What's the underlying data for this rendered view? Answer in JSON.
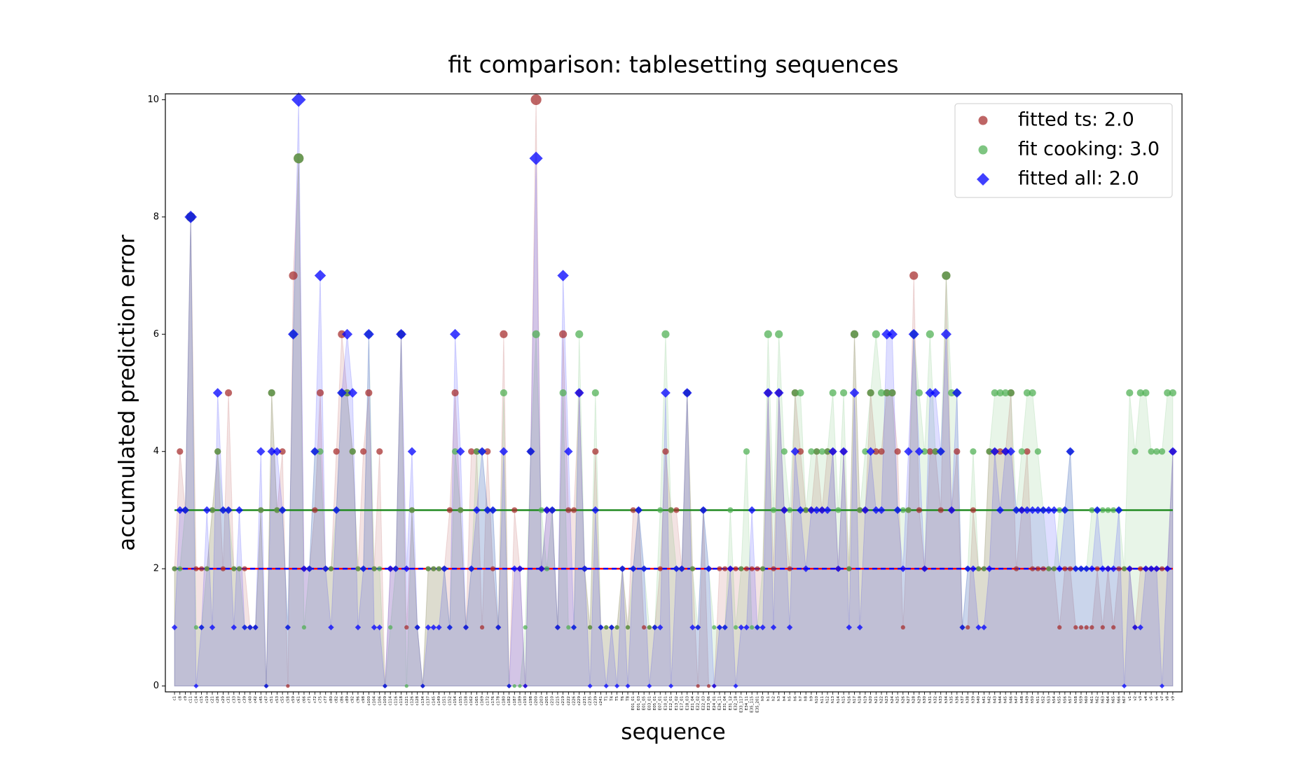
{
  "chart_data": {
    "type": "line",
    "title": "fit comparison: tablesetting sequences",
    "x_label": "sequence",
    "y_label": "accumulated prediction error",
    "ylim": [
      -0.1,
      10.1
    ],
    "yticks": [
      0,
      2,
      4,
      6,
      8,
      10
    ],
    "legend": "upper right",
    "categories": [
      "c1",
      "c8",
      "c9",
      "c11",
      "c14",
      "c15",
      "c19",
      "c21",
      "c26",
      "c29",
      "c31",
      "c33",
      "c37",
      "c39",
      "c40",
      "c42",
      "c45",
      "c47",
      "c51",
      "c53",
      "c55",
      "c58",
      "c59",
      "c61",
      "c66",
      "c71",
      "c72",
      "c75",
      "c77",
      "c80",
      "c82",
      "c86",
      "c89",
      "c92",
      "c96",
      "c98",
      "c100",
      "c104",
      "c106",
      "c109",
      "c114",
      "c116",
      "c118",
      "c121",
      "c126",
      "c128",
      "c134",
      "c137",
      "c145",
      "c149",
      "c151",
      "c152",
      "c154",
      "c155",
      "c158",
      "c162",
      "c165",
      "c169",
      "c172",
      "c176",
      "c178",
      "c180",
      "c182",
      "c187",
      "c189",
      "c193",
      "c198",
      "c200",
      "c203",
      "c205",
      "c210",
      "c215",
      "c219",
      "c222",
      "c226",
      "c229",
      "c231",
      "c235",
      "c239",
      "c241",
      "T1",
      "T4",
      "T5",
      "T6",
      "T8",
      "E01_01",
      "E01_03",
      "E01_05",
      "E03_01",
      "E05_01",
      "E07_01",
      "E10_01",
      "E12_01",
      "E13_02",
      "E17_01",
      "E18_03",
      "E21_04",
      "E22_02",
      "E22_03",
      "E23_06",
      "E24_01",
      "E26_11",
      "E31_04",
      "E31_12",
      "E32_18",
      "E33_117",
      "E34_11",
      "E35_115",
      "E35_201",
      "h0",
      "h1",
      "h2",
      "h3",
      "h4",
      "h5",
      "h6",
      "h7",
      "h8",
      "h9",
      "h10",
      "h11",
      "h12",
      "h13",
      "h14",
      "h15",
      "h16",
      "h17",
      "h18",
      "h19",
      "h20",
      "h21",
      "h22",
      "h23",
      "h24",
      "h25",
      "h26",
      "h27",
      "h28",
      "h29",
      "h30",
      "h31",
      "h32",
      "h33",
      "h34",
      "h35",
      "h36",
      "h37",
      "h38",
      "h39",
      "h40",
      "h41",
      "h42",
      "h43",
      "h44",
      "h45",
      "h46",
      "h47",
      "h48",
      "h49",
      "h50",
      "h51",
      "h52",
      "h53",
      "h54",
      "h55",
      "h56",
      "h57",
      "h58",
      "h59",
      "h60",
      "h61",
      "h62",
      "h63",
      "h64",
      "h65",
      "h66",
      "h67",
      "v1",
      "v2",
      "v3",
      "v4",
      "v5",
      "v6",
      "v7",
      "v8",
      "v9"
    ],
    "series": [
      {
        "name": "fitted ts: 2.0",
        "color": "#a52a2a",
        "marker": "circle",
        "level": 2,
        "line_style": "solid",
        "level_color": "#ff0000",
        "values": [
          2,
          4,
          3,
          8,
          2,
          2,
          2,
          3,
          4,
          2,
          5,
          2,
          2,
          2,
          1,
          1,
          3,
          0,
          5,
          3,
          4,
          0,
          7,
          9,
          2,
          2,
          3,
          5,
          2,
          2,
          4,
          6,
          5,
          4,
          2,
          4,
          5,
          2,
          4,
          0,
          2,
          2,
          6,
          1,
          3,
          1,
          0,
          2,
          2,
          2,
          2,
          3,
          5,
          3,
          1,
          4,
          4,
          1,
          4,
          2,
          1,
          6,
          0,
          3,
          2,
          0,
          4,
          10,
          2,
          3,
          3,
          1,
          6,
          3,
          3,
          5,
          2,
          1,
          4,
          1,
          1,
          1,
          1,
          2,
          1,
          3,
          3,
          1,
          1,
          1,
          2,
          4,
          3,
          3,
          2,
          5,
          2,
          0,
          3,
          0,
          0,
          2,
          2,
          2,
          2,
          2,
          2,
          2,
          2,
          2,
          5,
          2,
          5,
          3,
          2,
          5,
          4,
          3,
          3,
          4,
          3,
          4,
          4,
          2,
          4,
          2,
          6,
          3,
          3,
          5,
          4,
          4,
          5,
          5,
          4,
          1,
          3,
          7,
          3,
          2,
          4,
          4,
          3,
          7,
          3,
          4,
          1,
          1,
          3,
          2,
          2,
          4,
          4,
          4,
          4,
          5,
          2,
          3,
          4,
          2,
          2,
          2,
          2,
          2,
          1,
          2,
          2,
          1,
          1,
          1,
          1,
          2,
          1,
          2,
          1,
          2,
          2,
          2,
          1,
          2,
          2,
          2,
          2,
          2,
          2,
          4
        ]
      },
      {
        "name": "fit cooking: 3.0",
        "color": "#4caf50",
        "marker": "circle",
        "level": 3,
        "line_style": "solid",
        "level_color": "#228b22",
        "values": [
          2,
          2,
          3,
          8,
          1,
          1,
          2,
          3,
          4,
          3,
          3,
          2,
          2,
          1,
          1,
          1,
          3,
          0,
          5,
          3,
          3,
          1,
          6,
          9,
          1,
          2,
          4,
          4,
          2,
          2,
          3,
          5,
          5,
          4,
          2,
          2,
          6,
          2,
          2,
          0,
          1,
          2,
          6,
          0,
          3,
          1,
          0,
          2,
          2,
          2,
          2,
          1,
          4,
          3,
          1,
          2,
          4,
          4,
          3,
          3,
          1,
          5,
          0,
          0,
          0,
          1,
          4,
          6,
          3,
          2,
          3,
          1,
          5,
          1,
          1,
          6,
          2,
          1,
          5,
          1,
          1,
          1,
          1,
          2,
          1,
          2,
          3,
          2,
          1,
          1,
          3,
          6,
          3,
          2,
          2,
          5,
          2,
          1,
          3,
          2,
          1,
          1,
          1,
          3,
          1,
          2,
          4,
          1,
          1,
          2,
          6,
          3,
          6,
          4,
          3,
          5,
          5,
          3,
          4,
          4,
          4,
          4,
          5,
          3,
          5,
          2,
          6,
          3,
          4,
          5,
          6,
          5,
          5,
          5,
          3,
          3,
          3,
          6,
          5,
          4,
          6,
          4,
          4,
          7,
          5,
          5,
          1,
          2,
          4,
          2,
          2,
          4,
          5,
          5,
          5,
          5,
          3,
          4,
          5,
          5,
          4,
          3,
          2,
          2,
          3,
          3,
          4,
          2,
          2,
          2,
          3,
          3,
          3,
          3,
          3,
          3,
          2,
          5,
          4,
          5,
          5,
          4,
          4,
          4,
          5,
          5
        ]
      },
      {
        "name": "fitted all: 2.0",
        "color": "#0000ff",
        "marker": "diamond",
        "level": 2,
        "line_style": "dashed",
        "level_color": "#0000ff",
        "values": [
          1,
          3,
          3,
          8,
          0,
          1,
          3,
          1,
          5,
          3,
          3,
          1,
          3,
          1,
          1,
          1,
          4,
          0,
          4,
          4,
          3,
          1,
          6,
          10,
          2,
          2,
          4,
          7,
          2,
          1,
          3,
          5,
          6,
          5,
          1,
          2,
          6,
          1,
          1,
          0,
          2,
          2,
          6,
          2,
          4,
          1,
          0,
          1,
          1,
          1,
          2,
          1,
          6,
          4,
          1,
          2,
          3,
          4,
          3,
          3,
          1,
          4,
          0,
          2,
          2,
          0,
          4,
          9,
          2,
          3,
          3,
          1,
          7,
          4,
          1,
          5,
          2,
          0,
          3,
          1,
          0,
          1,
          0,
          2,
          0,
          2,
          3,
          2,
          0,
          1,
          1,
          5,
          0,
          2,
          2,
          5,
          1,
          1,
          3,
          2,
          0,
          1,
          1,
          2,
          0,
          1,
          1,
          3,
          1,
          1,
          5,
          1,
          5,
          3,
          1,
          4,
          3,
          2,
          3,
          3,
          3,
          3,
          4,
          2,
          4,
          1,
          5,
          1,
          3,
          4,
          3,
          3,
          6,
          6,
          3,
          2,
          4,
          6,
          4,
          2,
          5,
          5,
          4,
          6,
          3,
          5,
          1,
          2,
          2,
          1,
          1,
          2,
          4,
          3,
          4,
          4,
          3,
          3,
          3,
          3,
          3,
          3,
          3,
          3,
          2,
          3,
          4,
          2,
          2,
          2,
          2,
          3,
          2,
          2,
          2,
          3,
          0,
          2,
          1,
          1,
          2,
          2,
          2,
          0,
          2,
          4
        ]
      }
    ]
  }
}
